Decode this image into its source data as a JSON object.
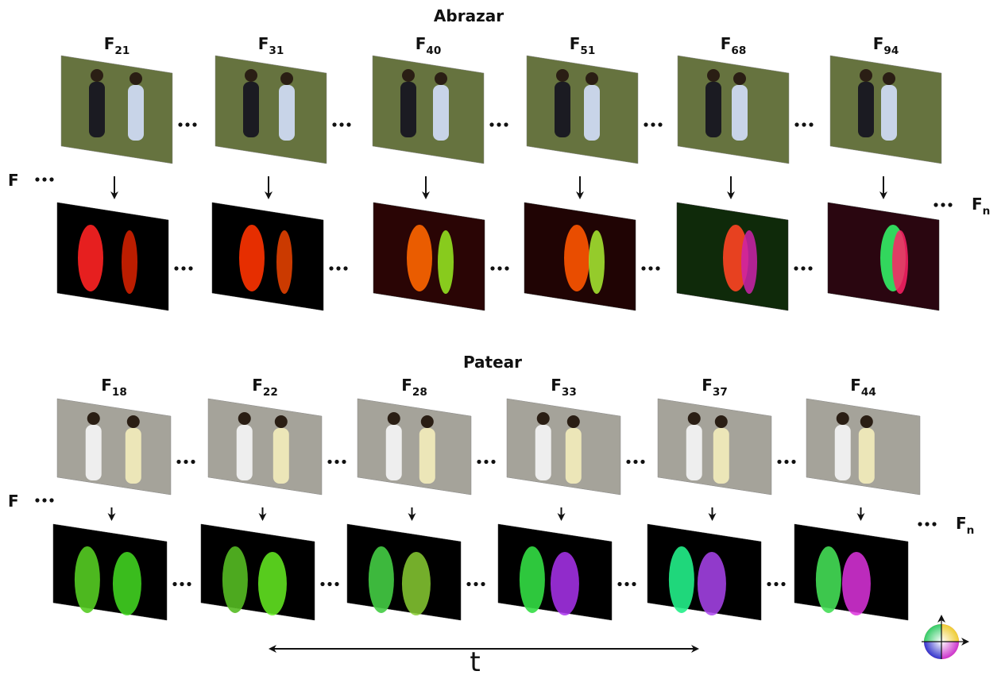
{
  "sections": [
    {
      "title": "Abrazar",
      "frames": [
        {
          "letter": "F",
          "sub": "21"
        },
        {
          "letter": "F",
          "sub": "31"
        },
        {
          "letter": "F",
          "sub": "40"
        },
        {
          "letter": "F",
          "sub": "51"
        },
        {
          "letter": "F",
          "sub": "68"
        },
        {
          "letter": "F",
          "sub": "94"
        }
      ],
      "row_label": "F",
      "end_label": {
        "letter": "F",
        "sub": "n"
      }
    },
    {
      "title": "Patear",
      "frames": [
        {
          "letter": "F",
          "sub": "18"
        },
        {
          "letter": "F",
          "sub": "22"
        },
        {
          "letter": "F",
          "sub": "28"
        },
        {
          "letter": "F",
          "sub": "33"
        },
        {
          "letter": "F",
          "sub": "37"
        },
        {
          "letter": "F",
          "sub": "44"
        }
      ],
      "row_label": "F",
      "end_label": {
        "letter": "F",
        "sub": "n"
      }
    }
  ],
  "time_label": "t"
}
